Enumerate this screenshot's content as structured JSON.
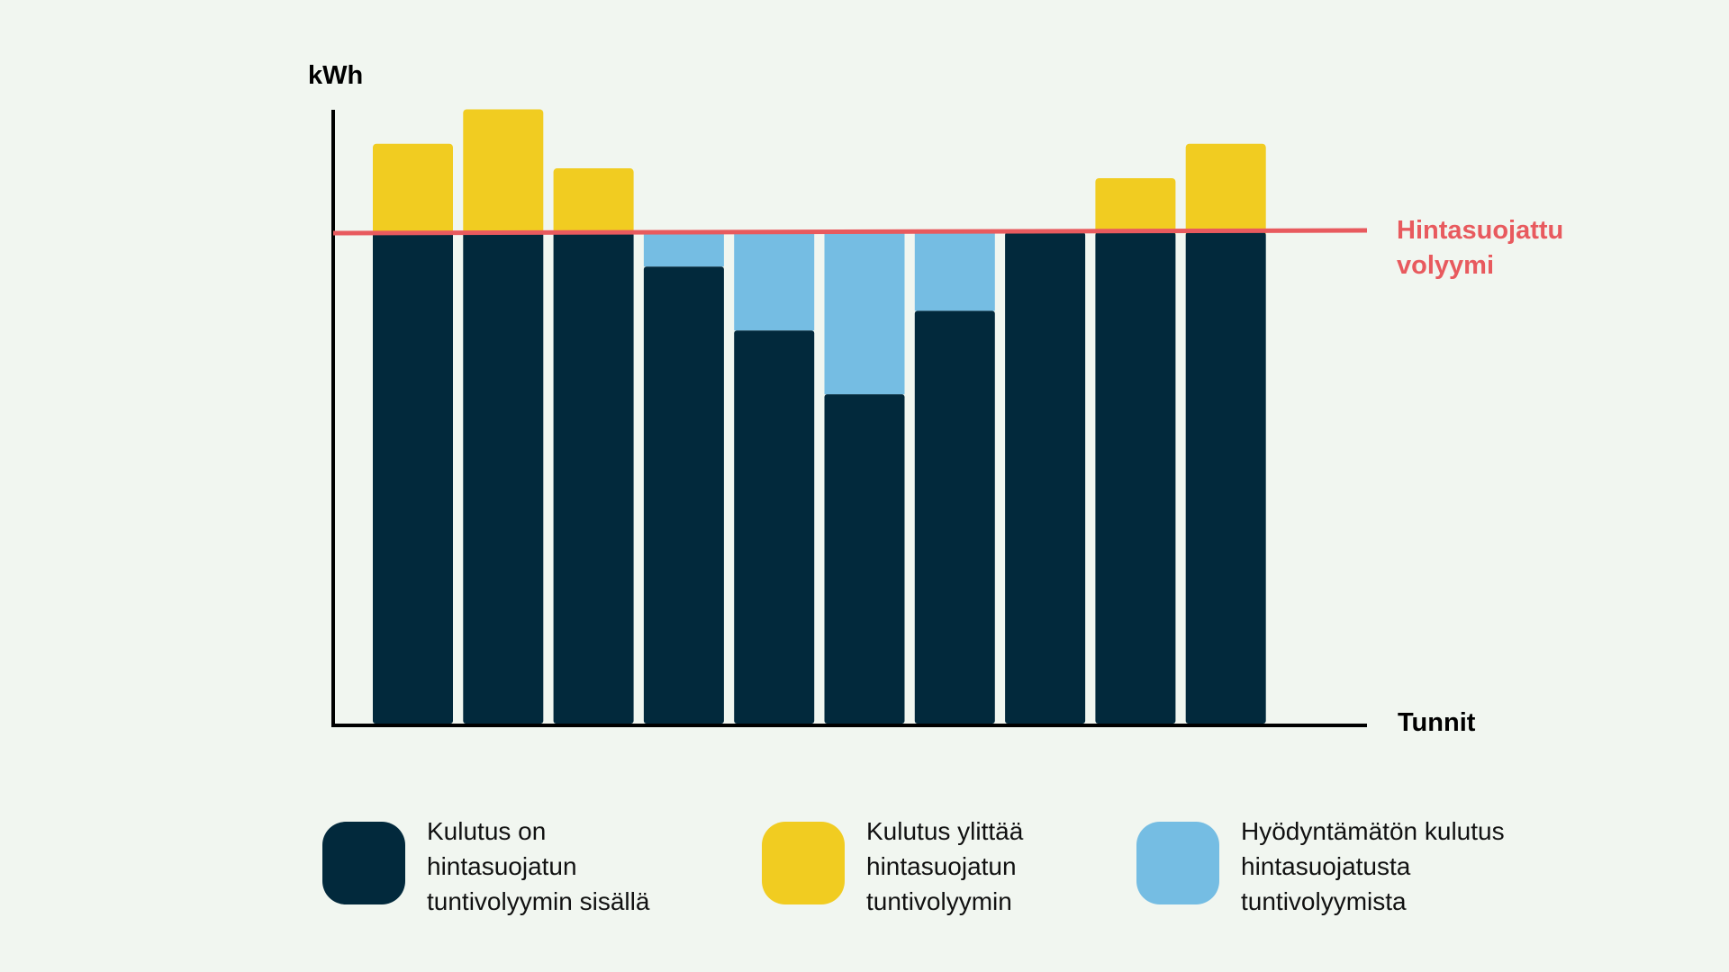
{
  "chart_data": {
    "type": "bar",
    "stacked": true,
    "ylabel": "kWh",
    "xlabel": "Tunnit",
    "grid": false,
    "ylim": [
      0,
      1.25
    ],
    "categories": [
      "",
      "",
      "",
      "",
      "",
      "",
      "",
      "",
      "",
      ""
    ],
    "protected_volume": 1.0,
    "series": [
      {
        "name": "Kulutus on hintasuojatun tuntivolyymin sisällä",
        "color": "#02293c",
        "values": [
          1.0,
          1.0,
          1.0,
          0.93,
          0.8,
          0.67,
          0.84,
          1.0,
          1.0,
          1.0
        ]
      },
      {
        "name": "Kulutus ylittää hintasuojatun tuntivolyymin",
        "color": "#f1cc21",
        "values": [
          0.18,
          0.25,
          0.13,
          0,
          0,
          0,
          0,
          0,
          0.11,
          0.18
        ]
      },
      {
        "name": "Hyödyntämätön kulutus hintasuojatusta tuntivolyymista",
        "color": "#75bde3",
        "values": [
          0,
          0,
          0,
          0.07,
          0.2,
          0.33,
          0.16,
          0,
          0,
          0
        ]
      }
    ],
    "reference_line": {
      "label_lines": [
        "Hintasuojattu",
        "volyymi"
      ],
      "color": "#e85a5e",
      "value": 1.0
    }
  },
  "legend": {
    "items": [
      {
        "lines": [
          "Kulutus on",
          "hintasuojatun",
          "tuntivolyymin sisällä"
        ],
        "color": "#02293c"
      },
      {
        "lines": [
          "Kulutus ylittää",
          "hintasuojatun",
          "tuntivolyymin"
        ],
        "color": "#f1cc21"
      },
      {
        "lines": [
          "Hyödyntämätön kulutus",
          "hintasuojatusta",
          "tuntivolyymista"
        ],
        "color": "#75bde3"
      }
    ]
  },
  "colors": {
    "background": "#f1f6f0",
    "axis": "#000000"
  }
}
